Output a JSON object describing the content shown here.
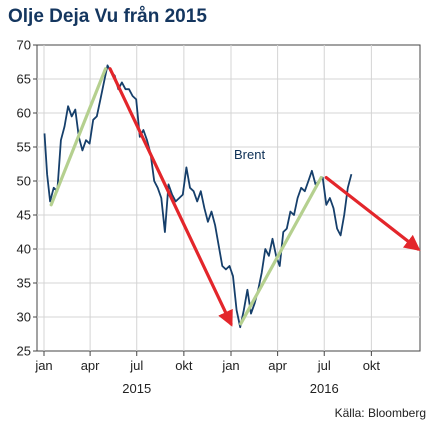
{
  "chart_data": {
    "type": "line",
    "title": "Olje Deja Vu från 2015",
    "source": "Källa: Bloomberg",
    "ylim": [
      25,
      70
    ],
    "y_ticks": [
      25,
      30,
      35,
      40,
      45,
      50,
      55,
      60,
      65,
      70
    ],
    "x_range": [
      "2015-01-01",
      "2016-12-31"
    ],
    "x_ticks": [
      {
        "date": "2015-01-01",
        "label": "jan"
      },
      {
        "date": "2015-04-01",
        "label": "apr"
      },
      {
        "date": "2015-07-01",
        "label": "jul"
      },
      {
        "date": "2015-10-01",
        "label": "okt"
      },
      {
        "date": "2016-01-01",
        "label": "jan"
      },
      {
        "date": "2016-04-01",
        "label": "apr"
      },
      {
        "date": "2016-07-01",
        "label": "jul"
      },
      {
        "date": "2016-10-01",
        "label": "okt"
      }
    ],
    "year_labels": [
      {
        "date": "2015-07-01",
        "label": "2015"
      },
      {
        "date": "2016-07-01",
        "label": "2016"
      }
    ],
    "grid": true,
    "series": [
      {
        "name": "Brent",
        "color": "#163f6b",
        "x": [
          "2015-01-02",
          "2015-01-07",
          "2015-01-13",
          "2015-01-20",
          "2015-01-27",
          "2015-02-03",
          "2015-02-10",
          "2015-02-17",
          "2015-02-24",
          "2015-03-03",
          "2015-03-10",
          "2015-03-17",
          "2015-03-24",
          "2015-03-31",
          "2015-04-07",
          "2015-04-14",
          "2015-04-21",
          "2015-04-28",
          "2015-05-05",
          "2015-05-12",
          "2015-05-19",
          "2015-05-26",
          "2015-06-02",
          "2015-06-09",
          "2015-06-16",
          "2015-06-23",
          "2015-06-30",
          "2015-07-07",
          "2015-07-14",
          "2015-07-21",
          "2015-07-28",
          "2015-08-04",
          "2015-08-11",
          "2015-08-18",
          "2015-08-25",
          "2015-09-01",
          "2015-09-08",
          "2015-09-15",
          "2015-09-22",
          "2015-09-29",
          "2015-10-06",
          "2015-10-13",
          "2015-10-20",
          "2015-10-27",
          "2015-11-03",
          "2015-11-10",
          "2015-11-17",
          "2015-11-24",
          "2015-12-01",
          "2015-12-08",
          "2015-12-15",
          "2015-12-22",
          "2015-12-29",
          "2016-01-05",
          "2016-01-12",
          "2016-01-19",
          "2016-01-26",
          "2016-02-02",
          "2016-02-09",
          "2016-02-16",
          "2016-02-23",
          "2016-03-01",
          "2016-03-08",
          "2016-03-15",
          "2016-03-22",
          "2016-03-29",
          "2016-04-05",
          "2016-04-12",
          "2016-04-19",
          "2016-04-26",
          "2016-05-03",
          "2016-05-10",
          "2016-05-17",
          "2016-05-24",
          "2016-05-31",
          "2016-06-07",
          "2016-06-14",
          "2016-06-21",
          "2016-06-28",
          "2016-07-05",
          "2016-07-12",
          "2016-07-19",
          "2016-07-26",
          "2016-08-02",
          "2016-08-09",
          "2016-08-16",
          "2016-08-23"
        ],
        "values": [
          57.0,
          51.0,
          47.0,
          49.0,
          48.5,
          56.0,
          58.0,
          61.0,
          59.5,
          60.5,
          56.5,
          54.5,
          56.0,
          55.5,
          59.0,
          59.5,
          62.0,
          64.5,
          67.0,
          66.0,
          65.5,
          63.5,
          64.5,
          63.5,
          63.5,
          62.5,
          62.0,
          56.5,
          57.5,
          56.0,
          54.0,
          50.0,
          49.0,
          47.5,
          42.5,
          49.5,
          48.0,
          47.0,
          47.5,
          48.0,
          52.0,
          49.0,
          48.5,
          47.0,
          48.5,
          46.0,
          44.0,
          45.5,
          43.5,
          40.5,
          37.5,
          37.0,
          37.5,
          36.0,
          31.0,
          28.5,
          31.0,
          34.0,
          30.5,
          32.0,
          34.0,
          36.5,
          40.0,
          39.0,
          41.5,
          39.0,
          37.5,
          42.5,
          43.0,
          45.5,
          45.0,
          47.5,
          49.0,
          48.5,
          50.0,
          51.5,
          49.5,
          50.0,
          50.5,
          46.5,
          47.5,
          46.0,
          43.0,
          42.0,
          45.0,
          49.0,
          51.0
        ]
      }
    ],
    "annotations": [
      {
        "type": "trend-arrow",
        "color": "#b5d08f",
        "from": [
          "2015-01-15",
          46.5
        ],
        "to": [
          "2015-05-01",
          66.5
        ],
        "arrowhead": false
      },
      {
        "type": "trend-arrow",
        "color": "#e3262b",
        "from": [
          "2015-05-10",
          66.5
        ],
        "to": [
          "2016-01-01",
          29.0
        ],
        "arrowhead": true
      },
      {
        "type": "trend-arrow",
        "color": "#b5d08f",
        "from": [
          "2016-01-20",
          29.0
        ],
        "to": [
          "2016-06-25",
          50.5
        ],
        "arrowhead": false
      },
      {
        "type": "trend-arrow",
        "color": "#e3262b",
        "from": [
          "2016-07-05",
          50.5
        ],
        "to": [
          "2016-12-31",
          40.0
        ],
        "arrowhead": true
      }
    ]
  }
}
